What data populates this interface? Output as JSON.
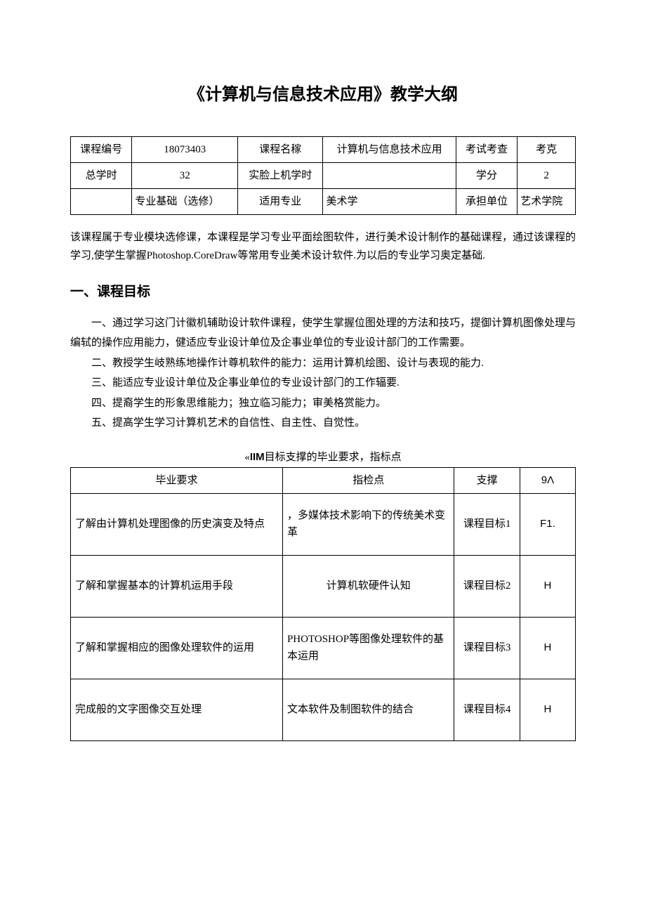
{
  "title": "《计算机与信息技术应用》教学大纲",
  "info_table": {
    "rows": [
      [
        "课程编号",
        "18073403",
        "课程名稼",
        "计算机与信息技术应用",
        "考试考查",
        "考克"
      ],
      [
        "总学时",
        "32",
        "实脸上机学时",
        "",
        "学分",
        "2"
      ],
      [
        "",
        "专业基础（选修）",
        "适用专业",
        "美术学",
        "承担单位",
        "艺术学院"
      ]
    ],
    "left_align_cells": [
      [
        2,
        1
      ],
      [
        2,
        3
      ],
      [
        2,
        5
      ]
    ]
  },
  "intro_para": "该课程属于专业模块选修课，本课程是学习专业平面绘图软件，进行美术设计制作的基础课程，通过该课程的学习,使学生掌握Photoshop.CoreDraw等常用专业美术设计软件.为以后的专业学习奥定基础.",
  "section1_heading": "一、课程目标",
  "goals": [
    "一、通过学习这门计徽机辅助设计软件课程，使学生掌握位图处理的方法和技巧，提御计算机图像处理与编轼的操作应用能力，健适应专业设计单位及企事业单位的专业设计部门的工作需要。",
    "二、教授学生岐熟练地操作计尊机软件的能力：运用计算机绘图、设计与表现的能力.",
    "三、能适应专业设计单位及企事业单位的专业设计部门的工作辐要.",
    "四、提裔学生的形象思维能力；独立临习能力；审美格赏能力。",
    "五、提高学生学习计算机艺术的自信性、自主性、自觉性。"
  ],
  "caption": {
    "prefix": "«",
    "bold": "IIM",
    "suffix": "目标支撑的毕业要求，指标点"
  },
  "req_table": {
    "headers": [
      "毕业要求",
      "指检点",
      "支撑",
      "9Λ"
    ],
    "rows": [
      {
        "c1": "了解由计算机处理图像的历史演变及特点",
        "c2": "，多媒体技术影响下的传统美术变革",
        "c3": "课程目标1",
        "c4": "F1."
      },
      {
        "c1": "了解和掌握基本的计算机运用手段",
        "c2": "计算机软硬件认知",
        "c2_center": true,
        "c3": "课程目标2",
        "c4": "H"
      },
      {
        "c1": "了解和掌握相应的图像处理软件的运用",
        "c2": "PHOTOSHOP等图像处理软件的基本运用",
        "c3": "课程目标3",
        "c4": "H"
      },
      {
        "c1": "完成般的文字图像交互处理",
        "c2": "文本软件及制图软件的结合",
        "c3": "课程目标4",
        "c4": "H"
      }
    ]
  }
}
